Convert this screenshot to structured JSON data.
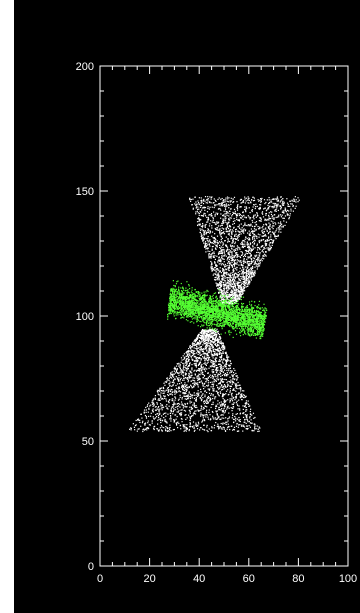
{
  "chart_data": {
    "type": "scatter",
    "title": "",
    "xlabel": "",
    "ylabel": "",
    "xlim": [
      0,
      100
    ],
    "ylim": [
      0,
      200
    ],
    "x_ticks": [
      "0",
      "20",
      "40",
      "60",
      "80",
      "100"
    ],
    "y_ticks": [
      "0",
      "50",
      "100",
      "150",
      "200"
    ],
    "grid": false,
    "background": "#000000",
    "axis_color": "#ffffff",
    "series": [
      {
        "color": "#ffffff",
        "description_role": "outflow cones",
        "regions": [
          {
            "center": [
              52,
              127
            ],
            "x_range": [
              35,
              75
            ],
            "y_range": [
              105,
              148
            ]
          },
          {
            "center": [
              44,
              75
            ],
            "x_range": [
              20,
              68
            ],
            "y_range": [
              54,
              95
            ]
          }
        ]
      },
      {
        "color": "#55ff33",
        "description_role": "central disk",
        "regions": [
          {
            "center": [
              47,
              102
            ],
            "x_range": [
              28,
              70
            ],
            "y_range": [
              88,
              114
            ]
          }
        ]
      }
    ]
  }
}
